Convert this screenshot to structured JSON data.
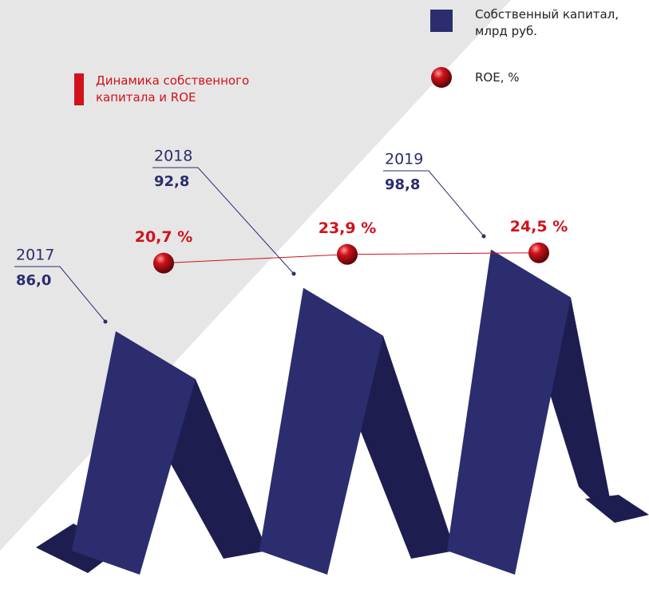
{
  "chart_data": {
    "type": "ribbon",
    "title": "Динамика собственного капитала и ROE",
    "categories": [
      "2017",
      "2018",
      "2019"
    ],
    "series": [
      {
        "name": "Собственный капитал, млрд руб.",
        "color": "#2b2d6e",
        "values": [
          86.0,
          92.8,
          98.8
        ],
        "value_labels": [
          "86,0",
          "92,8",
          "98,8"
        ]
      },
      {
        "name": "ROE, %",
        "color": "#d0121b",
        "values": [
          20.7,
          23.9,
          24.5
        ],
        "value_labels": [
          "20,7 %",
          "23,9 %",
          "24,5 %"
        ]
      }
    ]
  }
}
